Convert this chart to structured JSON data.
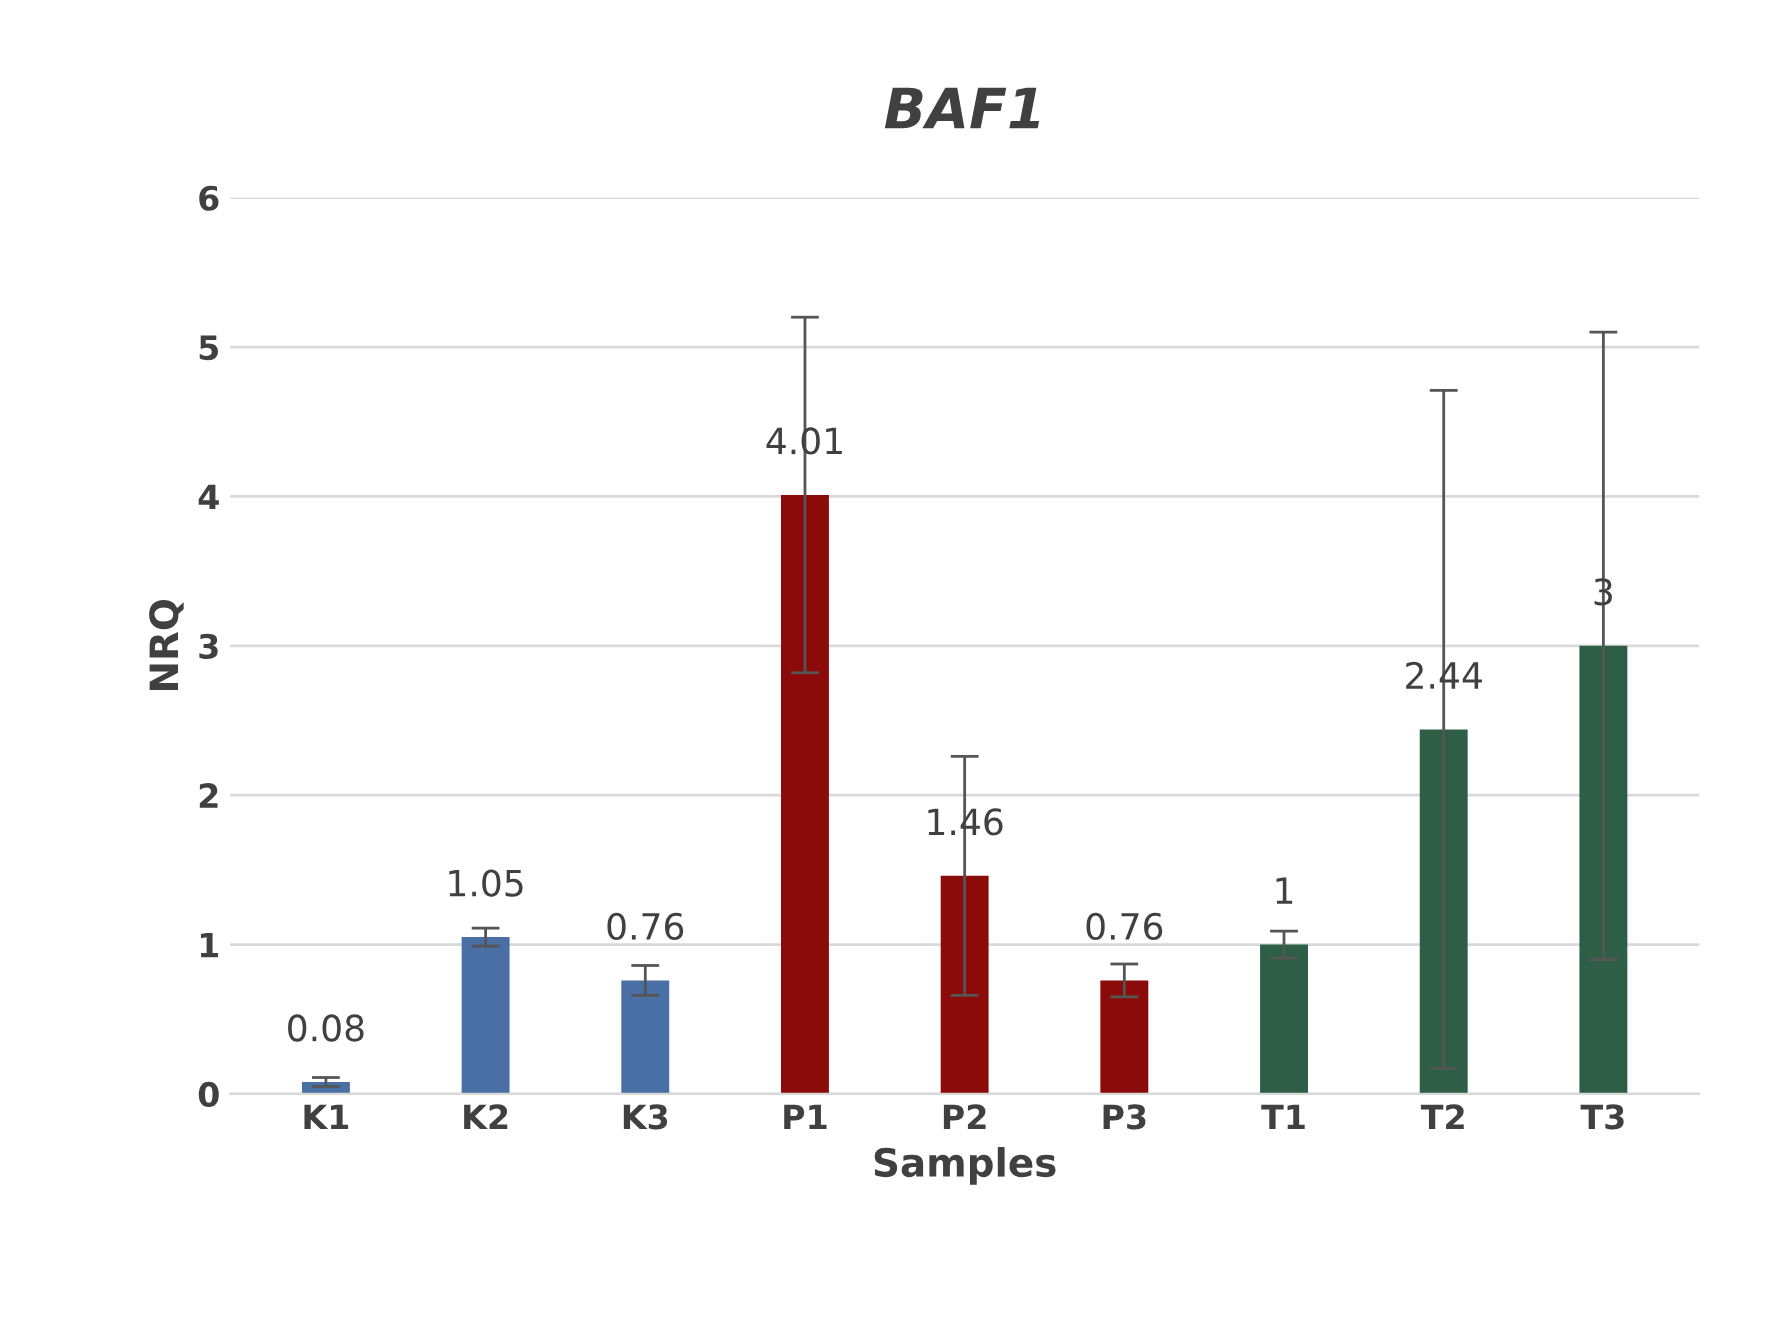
{
  "chart_data": {
    "type": "bar",
    "title": "BAF1",
    "xlabel": "Samples",
    "ylabel": "NRQ",
    "categories": [
      "K1",
      "K2",
      "K3",
      "P1",
      "P2",
      "P3",
      "T1",
      "T2",
      "T3"
    ],
    "values": [
      0.08,
      1.05,
      0.76,
      4.01,
      1.46,
      0.76,
      1,
      2.44,
      3
    ],
    "errors": [
      0.03,
      0.06,
      0.1,
      1.19,
      0.8,
      0.11,
      0.09,
      2.27,
      2.1
    ],
    "colors": [
      "#4a6fa5",
      "#4a6fa5",
      "#4a6fa5",
      "#8b0a0a",
      "#8b0a0a",
      "#8b0a0a",
      "#2e5e45",
      "#2e5e45",
      "#2e5e45"
    ],
    "data_labels": true,
    "ylim": [
      0,
      6
    ],
    "yticks": [
      0,
      1,
      2,
      3,
      4,
      5,
      6
    ],
    "grid": "y",
    "legend": false
  }
}
